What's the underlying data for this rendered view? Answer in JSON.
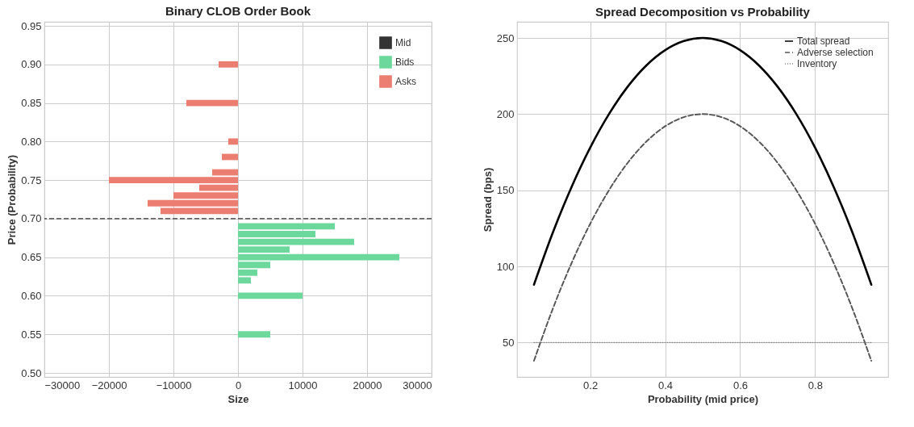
{
  "chart_data": [
    {
      "type": "bar",
      "orientation": "horizontal",
      "title": "Binary CLOB Order Book",
      "xlabel": "Size",
      "ylabel": "Price (Probability)",
      "series": [
        {
          "name": "Bids",
          "color": "#6dd89b",
          "x": [
            0.69,
            0.68,
            0.67,
            0.66,
            0.65,
            0.64,
            0.63,
            0.62,
            0.6,
            0.55
          ],
          "values": [
            15000,
            12000,
            18000,
            8000,
            25000,
            5000,
            3000,
            2000,
            10000,
            5000
          ]
        },
        {
          "name": "Asks",
          "color": "#ec7d71",
          "x": [
            0.9,
            0.85,
            0.8,
            0.78,
            0.76,
            0.75,
            0.74,
            0.73,
            0.72,
            0.71
          ],
          "values": [
            -3000,
            -8000,
            -1500,
            -2500,
            -4000,
            -20000,
            -6000,
            -10000,
            -14000,
            -12000
          ]
        }
      ],
      "ref_lines": [
        {
          "axis": "y",
          "value": 0.7,
          "label": "Mid",
          "color": "#333333",
          "line_style": "dashed"
        }
      ],
      "xlim": [
        -30000,
        30000
      ],
      "xticks": [
        {
          "value": -30000,
          "label": "−30000"
        },
        {
          "value": -20000,
          "label": "−20000"
        },
        {
          "value": -10000,
          "label": "−10000"
        },
        0,
        10000,
        20000,
        30000
      ],
      "ylim": [
        0.5,
        0.95
      ],
      "yticks": [
        {
          "value": 0.5,
          "label": "0.50"
        },
        {
          "value": 0.55,
          "label": "0.55"
        },
        {
          "value": 0.6,
          "label": "0.60"
        },
        {
          "value": 0.65,
          "label": "0.65"
        },
        {
          "value": 0.7,
          "label": "0.70"
        },
        {
          "value": 0.75,
          "label": "0.75"
        },
        {
          "value": 0.8,
          "label": "0.80"
        },
        {
          "value": 0.85,
          "label": "0.85"
        },
        {
          "value": 0.9,
          "label": "0.90"
        },
        {
          "value": 0.95,
          "label": "0.95"
        }
      ],
      "grid": true,
      "legend": "top right"
    },
    {
      "type": "line",
      "title": "Spread Decomposition vs Probability",
      "xlabel": "Probability (mid price)",
      "ylabel": "Spread (bps)",
      "x": [
        0.05,
        0.1,
        0.15,
        0.2,
        0.25,
        0.3,
        0.35,
        0.4,
        0.45,
        0.5,
        0.55,
        0.6,
        0.65,
        0.7,
        0.75,
        0.8,
        0.85,
        0.9,
        0.95
      ],
      "series": [
        {
          "name": "Total spread",
          "color": "#000000",
          "line_style": "solid",
          "values": [
            88,
            122,
            152,
            178,
            200,
            218,
            232,
            242,
            248,
            250,
            248,
            242,
            232,
            218,
            200,
            178,
            152,
            122,
            88
          ]
        },
        {
          "name": "Adverse selection",
          "color": "#555555",
          "line_style": "dashed",
          "values": [
            38,
            72,
            102,
            128,
            150,
            168,
            182,
            192,
            198,
            200,
            198,
            192,
            182,
            168,
            150,
            128,
            102,
            72,
            38
          ]
        },
        {
          "name": "Inventory",
          "color": "#888888",
          "line_style": "dotted",
          "values": [
            50,
            50,
            50,
            50,
            50,
            50,
            50,
            50,
            50,
            50,
            50,
            50,
            50,
            50,
            50,
            50,
            50,
            50,
            50
          ]
        }
      ],
      "xlim": [
        0.005,
        0.995
      ],
      "xticks": [
        0.2,
        0.4,
        0.6,
        0.8
      ],
      "ylim": [
        27.4,
        260.6
      ],
      "yticks": [
        50,
        100,
        150,
        200,
        250
      ],
      "grid": true,
      "legend": "top right",
      "marker": "none"
    }
  ]
}
